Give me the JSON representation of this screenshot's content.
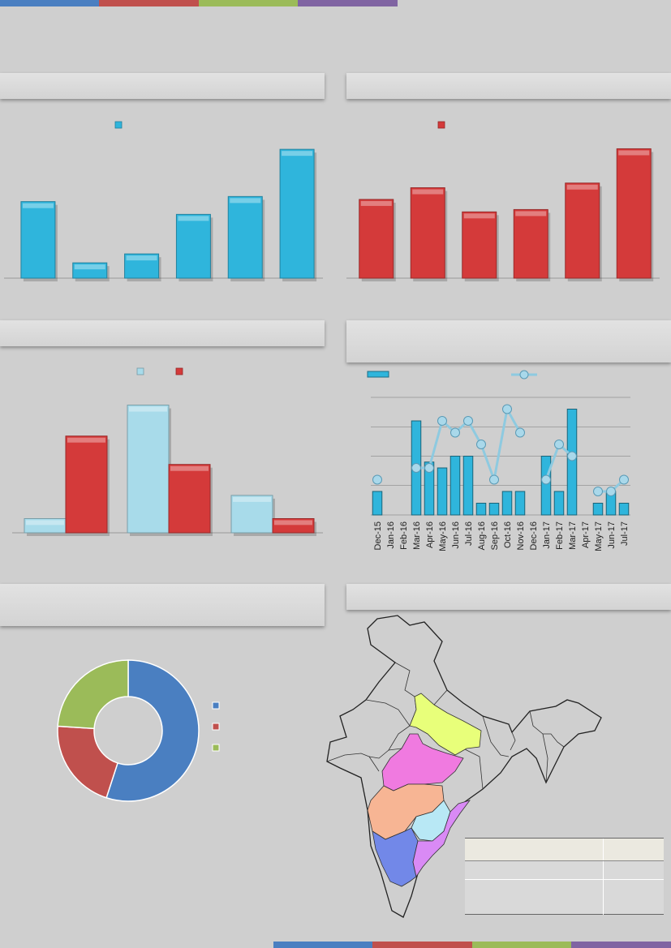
{
  "colors": {
    "strip": [
      "#4a7fc1",
      "#c0504d",
      "#9bbb59",
      "#8064a2"
    ],
    "blue": "#2fb5dc",
    "red": "#d43a3a",
    "light_blue": "#a8dbea",
    "map_states": [
      "#e8ff7a",
      "#f07ae0",
      "#f7b594",
      "#b8e8f5",
      "#7288e8",
      "#d98af5"
    ]
  },
  "chart_data": [
    {
      "id": "chart-1",
      "type": "bar",
      "title": "",
      "legend": [
        ""
      ],
      "categories": [
        "",
        "",
        "",
        "",
        "",
        ""
      ],
      "values": [
        60,
        12,
        19,
        50,
        64,
        101
      ],
      "ylim": [
        0,
        110
      ]
    },
    {
      "id": "chart-2",
      "type": "bar",
      "title": "",
      "legend": [
        ""
      ],
      "categories": [
        "",
        "",
        "",
        "",
        "",
        ""
      ],
      "values": [
        101,
        116,
        85,
        88,
        122,
        166
      ],
      "ylim": [
        0,
        180
      ]
    },
    {
      "id": "chart-3",
      "type": "bar",
      "title": "",
      "legend": [
        "",
        ""
      ],
      "categories": [
        "",
        "",
        ""
      ],
      "series": [
        {
          "name": "",
          "values": [
            11,
            99,
            29
          ]
        },
        {
          "name": "",
          "values": [
            75,
            53,
            11
          ]
        }
      ],
      "ylim": [
        0,
        105
      ]
    },
    {
      "id": "chart-4",
      "type": "bar+line",
      "title": "",
      "legend": [
        "",
        ""
      ],
      "categories": [
        "Dec-15",
        "Jan-16",
        "Feb-16",
        "Mar-16",
        "Apr-16",
        "May-16",
        "Jun-16",
        "Jul-16",
        "Aug-16",
        "Sep-16",
        "Oct-16",
        "Nov-16",
        "Dec-16",
        "Jan-17",
        "Feb-17",
        "Mar-17",
        "Apr-17",
        "May-17",
        "Jun-17",
        "Jul-17"
      ],
      "tick_labels": [
        "Dec-15",
        "Jan-16",
        "Feb-16",
        "Mar-16",
        "Apr-16",
        "May-16",
        "Jun-16",
        "Jul-16",
        "Aug-16",
        "Sep-16",
        "Oct-16",
        "Nov-16",
        "Dec-16",
        "Jan-17",
        "Feb-17",
        "Mar-17",
        "Apr-17",
        "May-17",
        "Jun-17",
        "Jul-17"
      ],
      "bars": [
        2,
        0,
        0,
        8,
        4.5,
        4,
        5,
        5,
        1,
        1,
        2,
        2,
        0,
        5,
        2,
        9,
        0,
        1,
        2,
        1
      ],
      "line": [
        3,
        null,
        null,
        4,
        4,
        8,
        7,
        8,
        6,
        3,
        9,
        7,
        null,
        3,
        6,
        5,
        null,
        2,
        2,
        3
      ],
      "ylim": [
        0,
        10
      ]
    },
    {
      "id": "chart-5",
      "type": "pie",
      "title": "",
      "labels": [
        "",
        "",
        ""
      ],
      "values": [
        55,
        21,
        24
      ]
    }
  ],
  "map_table": {
    "header": [
      "",
      ""
    ],
    "rows": [
      [
        "",
        ""
      ],
      [
        "",
        ""
      ]
    ]
  }
}
